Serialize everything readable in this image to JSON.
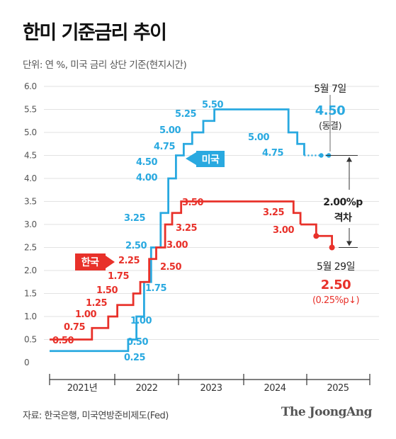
{
  "header": {
    "title": "한미 기준금리 추이",
    "unit_note": "단위: 연 %, 미국 금리 상단 기준(현지시간)"
  },
  "footer": {
    "source": "자료: 한국은행, 미국연방준비제도(Fed)",
    "logo": "The JoongAng"
  },
  "chart_data": {
    "type": "line",
    "step": true,
    "ylim": [
      0,
      6
    ],
    "yticks": [
      "0",
      "0.5",
      "1.0",
      "1.5",
      "2.0",
      "2.5",
      "3.0",
      "3.5",
      "4.0",
      "4.5",
      "5.0",
      "5.5",
      "6.0"
    ],
    "years": [
      "2021년",
      "2022",
      "2023",
      "2024",
      "2025"
    ],
    "grid": true,
    "series": [
      {
        "name": "미국",
        "color": "#29a9e0",
        "labels": [
          "0.25",
          "0.50",
          "1.00",
          "1.75",
          "2.50",
          "3.25",
          "4.00",
          "4.50",
          "4.75",
          "5.00",
          "5.25",
          "5.50",
          "5.00",
          "4.75"
        ],
        "steps": [
          {
            "x": 2021.0,
            "y": 0.25
          },
          {
            "x": 2022.21,
            "y": 0.5
          },
          {
            "x": 2022.34,
            "y": 1.0
          },
          {
            "x": 2022.46,
            "y": 1.75
          },
          {
            "x": 2022.57,
            "y": 2.5
          },
          {
            "x": 2022.72,
            "y": 3.25
          },
          {
            "x": 2022.84,
            "y": 4.0
          },
          {
            "x": 2022.96,
            "y": 4.5
          },
          {
            "x": 2023.08,
            "y": 4.75
          },
          {
            "x": 2023.21,
            "y": 5.0
          },
          {
            "x": 2023.38,
            "y": 5.25
          },
          {
            "x": 2023.55,
            "y": 5.5
          },
          {
            "x": 2024.71,
            "y": 5.0
          },
          {
            "x": 2024.85,
            "y": 4.75
          },
          {
            "x": 2024.96,
            "y": 4.5
          },
          {
            "x": 2025.35,
            "y": 4.5
          }
        ]
      },
      {
        "name": "한국",
        "color": "#e8312a",
        "labels": [
          "0.50",
          "0.75",
          "1.00",
          "1.25",
          "1.50",
          "1.75",
          "2.25",
          "2.50",
          "3.00",
          "3.25",
          "3.50",
          "3.25",
          "3.00"
        ],
        "steps": [
          {
            "x": 2021.0,
            "y": 0.5
          },
          {
            "x": 2021.65,
            "y": 0.75
          },
          {
            "x": 2021.9,
            "y": 1.0
          },
          {
            "x": 2022.04,
            "y": 1.25
          },
          {
            "x": 2022.29,
            "y": 1.5
          },
          {
            "x": 2022.4,
            "y": 1.75
          },
          {
            "x": 2022.54,
            "y": 2.25
          },
          {
            "x": 2022.65,
            "y": 2.5
          },
          {
            "x": 2022.79,
            "y": 3.0
          },
          {
            "x": 2022.9,
            "y": 3.25
          },
          {
            "x": 2023.04,
            "y": 3.5
          },
          {
            "x": 2024.79,
            "y": 3.25
          },
          {
            "x": 2024.9,
            "y": 3.0
          },
          {
            "x": 2025.15,
            "y": 2.75
          },
          {
            "x": 2025.4,
            "y": 2.5
          }
        ]
      }
    ],
    "annotations": {
      "us_date": "5월 7일",
      "us_value": "4.50",
      "us_note": "(동결)",
      "gap_line1": "2.00%p",
      "gap_line2": "격차",
      "kr_date": "5월 29일",
      "kr_value": "2.50",
      "kr_note": "(0.25%p↓)"
    }
  }
}
